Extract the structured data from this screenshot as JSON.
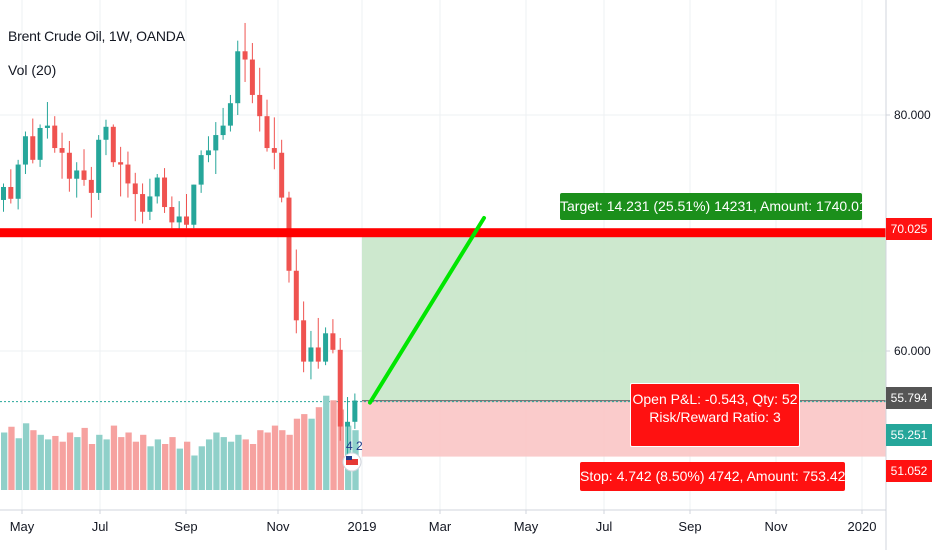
{
  "header": {
    "title": "Brent Crude Oil, 1W, OANDA",
    "volume_indicator": "Vol (20)"
  },
  "chart_data": {
    "type": "candlestick",
    "title": "Brent Crude Oil, 1W, OANDA",
    "x_ticks": [
      "May",
      "Jul",
      "Sep",
      "Nov",
      "2019",
      "Mar",
      "May",
      "Jul",
      "Sep",
      "Nov",
      "2020"
    ],
    "y_ticks": [
      "80.000",
      "60.000"
    ],
    "ylim": [
      48,
      92
    ],
    "candles": [
      [
        72.8,
        74.2,
        71.8,
        73.9
      ],
      [
        73.9,
        75.4,
        72.5,
        72.9
      ],
      [
        72.9,
        76.2,
        72.0,
        75.8
      ],
      [
        75.8,
        78.6,
        75.0,
        78.2
      ],
      [
        78.2,
        79.7,
        75.9,
        76.2
      ],
      [
        76.2,
        79.2,
        75.6,
        78.9
      ],
      [
        78.9,
        81.1,
        78.0,
        79.1
      ],
      [
        79.1,
        79.9,
        76.8,
        77.2
      ],
      [
        77.2,
        78.5,
        74.6,
        76.8
      ],
      [
        76.8,
        77.8,
        73.5,
        74.6
      ],
      [
        74.6,
        76.0,
        73.0,
        75.3
      ],
      [
        75.3,
        77.1,
        74.0,
        74.5
      ],
      [
        74.5,
        75.6,
        71.3,
        73.4
      ],
      [
        73.4,
        78.3,
        72.8,
        77.9
      ],
      [
        77.9,
        79.6,
        76.6,
        79.0
      ],
      [
        79.0,
        79.2,
        75.6,
        76.0
      ],
      [
        76.0,
        77.3,
        73.1,
        75.8
      ],
      [
        75.8,
        76.9,
        73.0,
        74.2
      ],
      [
        74.2,
        75.1,
        71.0,
        73.3
      ],
      [
        73.3,
        74.2,
        70.8,
        71.8
      ],
      [
        71.8,
        74.6,
        71.1,
        73.1
      ],
      [
        73.1,
        75.0,
        72.5,
        74.7
      ],
      [
        74.7,
        75.5,
        71.7,
        72.2
      ],
      [
        72.2,
        73.1,
        70.4,
        70.9
      ],
      [
        70.9,
        72.7,
        70.2,
        71.4
      ],
      [
        71.4,
        73.3,
        70.4,
        70.7
      ],
      [
        70.7,
        74.1,
        70.4,
        74.1
      ],
      [
        74.1,
        77.0,
        73.4,
        76.6
      ],
      [
        76.6,
        78.2,
        76.0,
        77.0
      ],
      [
        77.0,
        79.4,
        75.0,
        78.3
      ],
      [
        78.3,
        80.6,
        77.9,
        79.1
      ],
      [
        79.1,
        81.7,
        78.6,
        81.0
      ],
      [
        81.0,
        86.3,
        80.0,
        85.4
      ],
      [
        85.4,
        87.8,
        82.8,
        84.7
      ],
      [
        84.7,
        86.1,
        81.0,
        81.7
      ],
      [
        81.7,
        84.0,
        78.6,
        79.9
      ],
      [
        79.9,
        81.3,
        76.9,
        77.2
      ],
      [
        77.2,
        79.8,
        75.4,
        76.8
      ],
      [
        76.8,
        77.9,
        72.6,
        73.0
      ],
      [
        73.0,
        73.5,
        65.8,
        66.8
      ],
      [
        66.8,
        68.6,
        61.5,
        62.6
      ],
      [
        62.6,
        64.2,
        58.2,
        59.1
      ],
      [
        59.1,
        61.7,
        57.6,
        60.3
      ],
      [
        60.3,
        62.8,
        58.5,
        59.1
      ],
      [
        59.1,
        62.0,
        58.8,
        61.5
      ],
      [
        61.5,
        62.7,
        59.8,
        60.1
      ],
      [
        60.1,
        61.1,
        52.4,
        53.6
      ],
      [
        53.6,
        56.1,
        50.4,
        54.0
      ],
      [
        54.0,
        56.4,
        53.4,
        55.8
      ]
    ],
    "volumes": [
      0.5,
      0.55,
      0.45,
      0.58,
      0.52,
      0.48,
      0.44,
      0.47,
      0.42,
      0.5,
      0.46,
      0.54,
      0.4,
      0.48,
      0.44,
      0.56,
      0.46,
      0.5,
      0.42,
      0.48,
      0.38,
      0.44,
      0.4,
      0.46,
      0.36,
      0.42,
      0.3,
      0.38,
      0.44,
      0.5,
      0.46,
      0.42,
      0.48,
      0.44,
      0.4,
      0.52,
      0.5,
      0.56,
      0.52,
      0.48,
      0.62,
      0.66,
      0.62,
      0.72,
      0.82,
      0.78,
      0.7,
      0.56,
      0.52
    ],
    "trade": {
      "entry": 55.794,
      "target": 70.025,
      "stop": 51.052,
      "current": 55.251,
      "target_label": "Target: 14.231 (25.51%) 14231, Amount: 1740.01",
      "pl_label": "Open P&L: -0.543, Qty: 52",
      "rr_label": "Risk/Reward Ratio: 3",
      "stop_label": "Stop: 4.742 (8.50%) 4742, Amount: 753.42"
    },
    "horizontal_line": 70.025,
    "price_tags": [
      "70.025",
      "55.794",
      "55.251",
      "51.052"
    ],
    "event_badge": "4 2",
    "colors": {
      "up": "#26a69a",
      "down": "#ef5350",
      "up_volume": "#8fd0c9",
      "down_volume": "#f6a2a0",
      "target_zone": "#c8e6c9",
      "stop_zone": "#f9c5c5",
      "red_line": "#ff0000",
      "projection": "#00e600",
      "target_box": "#1b8f1b",
      "stop_box": "#ff1111",
      "entry_tag": "#555555",
      "current_tag": "#26a69a"
    }
  }
}
